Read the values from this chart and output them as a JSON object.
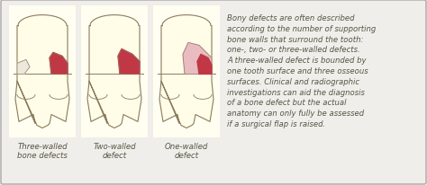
{
  "background_color": "#f0eeea",
  "border_color": "#aaaaaa",
  "panel_bg": "#fffef0",
  "tooth_outline_color": "#8B7B5E",
  "tooth_fill_color": "#fffde8",
  "red_defect_color": "#c03845",
  "pink_defect_color": "#e8bcc0",
  "white_bone_color": "#ede8dc",
  "labels": [
    "Three-walled\nbone defects",
    "Two-walled\ndefect",
    "One-walled\ndefect"
  ],
  "description": "Bony defects are often described\naccording to the number of supporting\nbone walls that surround the tooth:\none-, two- or three-walled defects.\nA three-walled defect is bounded by\none tooth surface and three osseous\nsurfaces. Clinical and radiographic\ninvestigations can aid the diagnosis\nof a bone defect but the actual\nanatomy can only fully be assessed\nif a surgical flap is raised.",
  "label_fontsize": 6.2,
  "desc_fontsize": 6.1,
  "text_color": "#555544",
  "figsize": [
    4.74,
    2.07
  ],
  "dpi": 100
}
